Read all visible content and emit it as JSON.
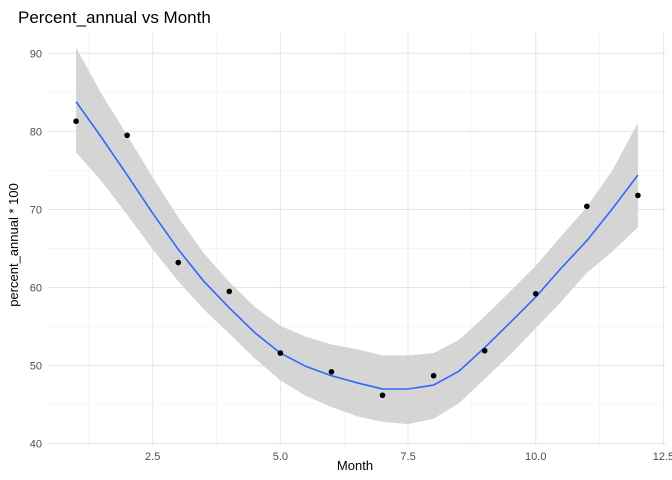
{
  "chart_data": {
    "type": "scatter",
    "title": "Percent_annual vs Month",
    "xlabel": "Month",
    "ylabel": "percent_annual * 100",
    "xlim": [
      0.45,
      12.55
    ],
    "ylim": [
      39.7,
      92.6
    ],
    "x_ticks": [
      2.5,
      5.0,
      7.5,
      10.0,
      12.5
    ],
    "x_tick_labels": [
      "2.5",
      "5.0",
      "7.5",
      "10.0",
      "12.5"
    ],
    "y_ticks": [
      40,
      50,
      60,
      70,
      80,
      90
    ],
    "y_tick_labels": [
      "40",
      "50",
      "60",
      "70",
      "80",
      "90"
    ],
    "grid": true,
    "legend": "none",
    "points": {
      "x": [
        1,
        2,
        3,
        4,
        5,
        6,
        7,
        8,
        9,
        10,
        11,
        12
      ],
      "y": [
        81.3,
        79.5,
        63.2,
        59.5,
        51.6,
        49.2,
        46.2,
        48.7,
        51.9,
        59.2,
        70.4,
        71.8
      ],
      "color": "#000000"
    },
    "smooth": {
      "method": "loess",
      "color": "#3366ff",
      "band_color": "#d3d3d3",
      "x": [
        1,
        1.5,
        2,
        2.5,
        3,
        3.5,
        4,
        4.5,
        5,
        5.5,
        6,
        6.5,
        7,
        7.5,
        8,
        8.5,
        9,
        9.5,
        10,
        10.5,
        11,
        11.5,
        12
      ],
      "y": [
        83.8,
        79.2,
        74.4,
        69.5,
        64.9,
        60.8,
        57.4,
        54.2,
        51.6,
        49.9,
        48.7,
        47.8,
        47.0,
        47.0,
        47.5,
        49.3,
        52.3,
        55.5,
        58.8,
        62.5,
        66.0,
        70.1,
        74.4
      ],
      "lower": [
        77.3,
        73.6,
        69.3,
        64.9,
        60.8,
        57.2,
        54.1,
        50.9,
        48.1,
        46.1,
        44.7,
        43.5,
        42.8,
        42.5,
        43.2,
        45.2,
        48.3,
        51.4,
        54.8,
        58.2,
        61.9,
        64.6,
        67.7
      ],
      "upper": [
        90.7,
        84.8,
        79.5,
        74.1,
        69.0,
        64.4,
        60.7,
        57.5,
        55.1,
        53.7,
        52.7,
        52.1,
        51.3,
        51.3,
        51.6,
        53.3,
        56.3,
        59.5,
        62.8,
        66.6,
        70.3,
        75.0,
        81.1
      ]
    }
  }
}
